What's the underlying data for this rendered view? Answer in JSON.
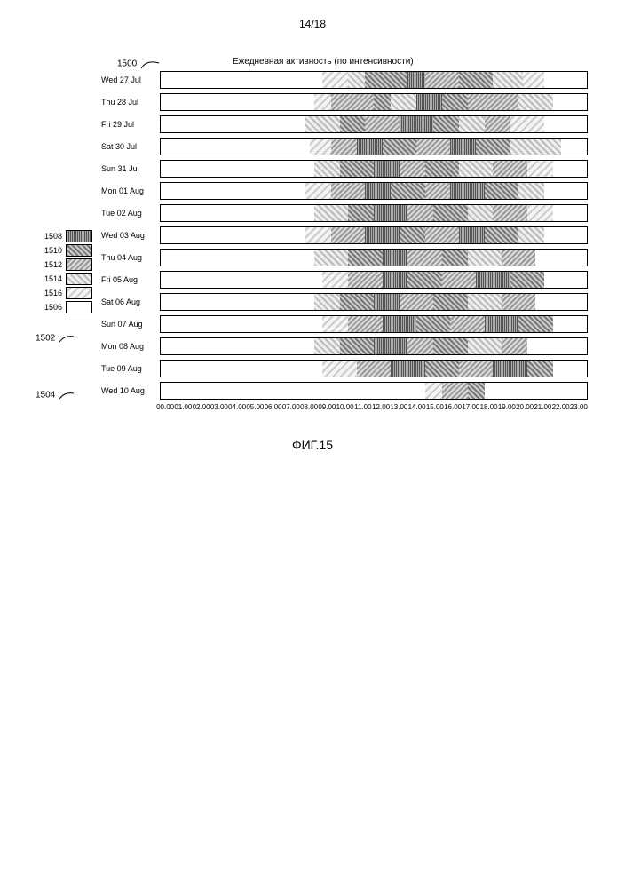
{
  "page_number": "14/18",
  "figure_label": "ФИГ.15",
  "chart": {
    "title": "Ежедневная активность (по интенсивности)",
    "callout_main": "1500",
    "callout_row": "1502",
    "callout_axis": "1504",
    "x_ticks": [
      "00.00",
      "01.00",
      "02.00",
      "03.00",
      "04.00",
      "05.00",
      "06.00",
      "07.00",
      "08.00",
      "09.00",
      "10.00",
      "11.00",
      "12.00",
      "13.00",
      "14.00",
      "15.00",
      "16.00",
      "17.00",
      "18.00",
      "19.00",
      "20.00",
      "21.00",
      "22.00",
      "23.00"
    ],
    "legend": [
      {
        "num": "1508",
        "class": "p1508"
      },
      {
        "num": "1510",
        "class": "p1510"
      },
      {
        "num": "1512",
        "class": "p1512"
      },
      {
        "num": "1514",
        "class": "p1514"
      },
      {
        "num": "1516",
        "class": "p1516"
      },
      {
        "num": "1506",
        "class": "p1506"
      }
    ],
    "rows": [
      {
        "label": "Wed 27 Jul",
        "segs": [
          [
            38,
            44,
            "p1516"
          ],
          [
            44,
            48,
            "p1514"
          ],
          [
            48,
            58,
            "p1510"
          ],
          [
            58,
            62,
            "p1508"
          ],
          [
            62,
            70,
            "p1512"
          ],
          [
            70,
            78,
            "p1510"
          ],
          [
            78,
            85,
            "p1514"
          ],
          [
            85,
            90,
            "p1516"
          ]
        ]
      },
      {
        "label": "Thu 28 Jul",
        "segs": [
          [
            36,
            40,
            "p1516"
          ],
          [
            40,
            50,
            "p1512"
          ],
          [
            50,
            54,
            "p1510"
          ],
          [
            54,
            60,
            "p1514"
          ],
          [
            60,
            66,
            "p1508"
          ],
          [
            66,
            72,
            "p1510"
          ],
          [
            72,
            84,
            "p1512"
          ],
          [
            84,
            92,
            "p1514"
          ]
        ]
      },
      {
        "label": "Fri 29 Jul",
        "segs": [
          [
            34,
            42,
            "p1514"
          ],
          [
            42,
            48,
            "p1510"
          ],
          [
            48,
            56,
            "p1512"
          ],
          [
            56,
            64,
            "p1508"
          ],
          [
            64,
            70,
            "p1510"
          ],
          [
            70,
            76,
            "p1514"
          ],
          [
            76,
            82,
            "p1512"
          ],
          [
            82,
            90,
            "p1516"
          ]
        ]
      },
      {
        "label": "Sat 30 Jul",
        "segs": [
          [
            35,
            40,
            "p1516"
          ],
          [
            40,
            46,
            "p1512"
          ],
          [
            46,
            52,
            "p1508"
          ],
          [
            52,
            60,
            "p1510"
          ],
          [
            60,
            68,
            "p1512"
          ],
          [
            68,
            74,
            "p1508"
          ],
          [
            74,
            82,
            "p1510"
          ],
          [
            82,
            94,
            "p1514"
          ]
        ]
      },
      {
        "label": "Sun 31 Jul",
        "segs": [
          [
            36,
            42,
            "p1514"
          ],
          [
            42,
            50,
            "p1510"
          ],
          [
            50,
            56,
            "p1508"
          ],
          [
            56,
            62,
            "p1512"
          ],
          [
            62,
            70,
            "p1510"
          ],
          [
            70,
            78,
            "p1514"
          ],
          [
            78,
            86,
            "p1512"
          ],
          [
            86,
            92,
            "p1516"
          ]
        ]
      },
      {
        "label": "Mon 01 Aug",
        "segs": [
          [
            34,
            40,
            "p1516"
          ],
          [
            40,
            48,
            "p1512"
          ],
          [
            48,
            54,
            "p1508"
          ],
          [
            54,
            62,
            "p1510"
          ],
          [
            62,
            68,
            "p1512"
          ],
          [
            68,
            76,
            "p1508"
          ],
          [
            76,
            84,
            "p1510"
          ],
          [
            84,
            90,
            "p1514"
          ]
        ]
      },
      {
        "label": "Tue 02 Aug",
        "segs": [
          [
            36,
            44,
            "p1514"
          ],
          [
            44,
            50,
            "p1510"
          ],
          [
            50,
            58,
            "p1508"
          ],
          [
            58,
            64,
            "p1512"
          ],
          [
            64,
            72,
            "p1510"
          ],
          [
            72,
            78,
            "p1514"
          ],
          [
            78,
            86,
            "p1512"
          ],
          [
            86,
            92,
            "p1516"
          ]
        ]
      },
      {
        "label": "Wed 03 Aug",
        "segs": [
          [
            34,
            40,
            "p1516"
          ],
          [
            40,
            48,
            "p1512"
          ],
          [
            48,
            56,
            "p1508"
          ],
          [
            56,
            62,
            "p1510"
          ],
          [
            62,
            70,
            "p1512"
          ],
          [
            70,
            76,
            "p1508"
          ],
          [
            76,
            84,
            "p1510"
          ],
          [
            84,
            90,
            "p1514"
          ]
        ]
      },
      {
        "label": "Thu 04 Aug",
        "segs": [
          [
            36,
            44,
            "p1514"
          ],
          [
            44,
            52,
            "p1510"
          ],
          [
            52,
            58,
            "p1508"
          ],
          [
            58,
            66,
            "p1512"
          ],
          [
            66,
            72,
            "p1510"
          ],
          [
            72,
            80,
            "p1514"
          ],
          [
            80,
            88,
            "p1512"
          ]
        ]
      },
      {
        "label": "Fri 05 Aug",
        "segs": [
          [
            38,
            44,
            "p1516"
          ],
          [
            44,
            52,
            "p1512"
          ],
          [
            52,
            58,
            "p1508"
          ],
          [
            58,
            66,
            "p1510"
          ],
          [
            66,
            74,
            "p1512"
          ],
          [
            74,
            82,
            "p1508"
          ],
          [
            82,
            90,
            "p1510"
          ]
        ]
      },
      {
        "label": "Sat 06 Aug",
        "segs": [
          [
            36,
            42,
            "p1514"
          ],
          [
            42,
            50,
            "p1510"
          ],
          [
            50,
            56,
            "p1508"
          ],
          [
            56,
            64,
            "p1512"
          ],
          [
            64,
            72,
            "p1510"
          ],
          [
            72,
            80,
            "p1514"
          ],
          [
            80,
            88,
            "p1512"
          ]
        ]
      },
      {
        "label": "Sun 07 Aug",
        "segs": [
          [
            38,
            44,
            "p1516"
          ],
          [
            44,
            52,
            "p1512"
          ],
          [
            52,
            60,
            "p1508"
          ],
          [
            60,
            68,
            "p1510"
          ],
          [
            68,
            76,
            "p1512"
          ],
          [
            76,
            84,
            "p1508"
          ],
          [
            84,
            92,
            "p1510"
          ]
        ]
      },
      {
        "label": "Mon 08 Aug",
        "segs": [
          [
            36,
            42,
            "p1514"
          ],
          [
            42,
            50,
            "p1510"
          ],
          [
            50,
            58,
            "p1508"
          ],
          [
            58,
            64,
            "p1512"
          ],
          [
            64,
            72,
            "p1510"
          ],
          [
            72,
            80,
            "p1514"
          ],
          [
            80,
            86,
            "p1512"
          ]
        ]
      },
      {
        "label": "Tue 09 Aug",
        "segs": [
          [
            38,
            46,
            "p1516"
          ],
          [
            46,
            54,
            "p1512"
          ],
          [
            54,
            62,
            "p1508"
          ],
          [
            62,
            70,
            "p1510"
          ],
          [
            70,
            78,
            "p1512"
          ],
          [
            78,
            86,
            "p1508"
          ],
          [
            86,
            92,
            "p1510"
          ]
        ]
      },
      {
        "label": "Wed 10 Aug",
        "segs": [
          [
            62,
            66,
            "p1516"
          ],
          [
            66,
            72,
            "p1512"
          ],
          [
            72,
            76,
            "p1510"
          ]
        ]
      }
    ]
  }
}
